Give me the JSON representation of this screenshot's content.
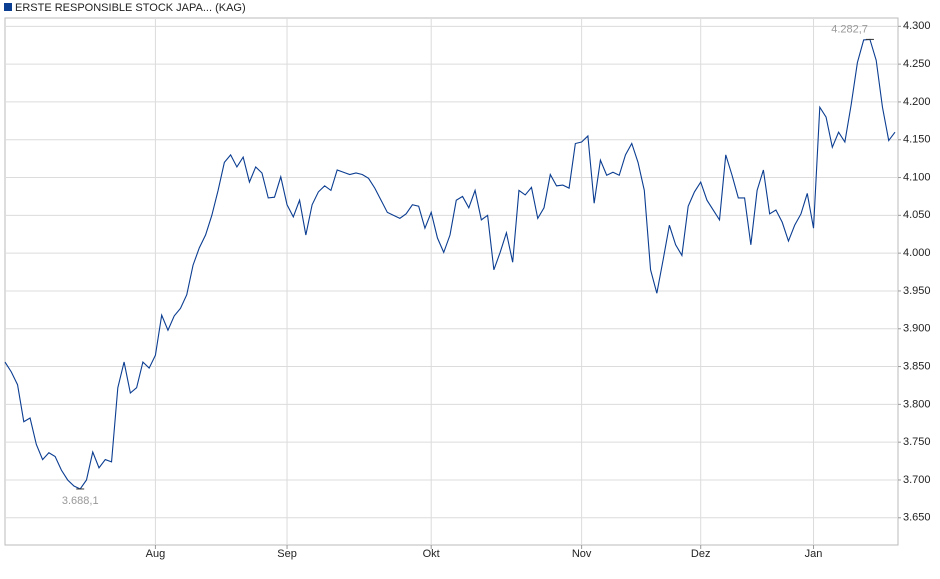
{
  "chart_data": {
    "type": "line",
    "categories": [
      null,
      null,
      null,
      null,
      null,
      null,
      null,
      null,
      null,
      null,
      null,
      null,
      null,
      null,
      null,
      null,
      null,
      null,
      null,
      null,
      null,
      null,
      null,
      null,
      "Aug",
      null,
      null,
      null,
      null,
      null,
      null,
      null,
      null,
      null,
      null,
      null,
      null,
      null,
      null,
      null,
      null,
      null,
      null,
      null,
      null,
      "Sep",
      null,
      null,
      null,
      null,
      null,
      null,
      null,
      null,
      null,
      null,
      null,
      null,
      null,
      null,
      null,
      null,
      null,
      null,
      null,
      null,
      null,
      null,
      "Okt",
      null,
      null,
      null,
      null,
      null,
      null,
      null,
      null,
      null,
      null,
      null,
      null,
      null,
      null,
      null,
      null,
      null,
      null,
      null,
      null,
      null,
      null,
      null,
      "Nov",
      null,
      null,
      null,
      null,
      null,
      null,
      null,
      null,
      null,
      null,
      null,
      null,
      null,
      null,
      null,
      null,
      null,
      null,
      "Dez",
      null,
      null,
      null,
      null,
      null,
      null,
      null,
      null,
      null,
      null,
      null,
      null,
      null,
      null,
      null,
      null,
      null,
      "Jan",
      null,
      null,
      null,
      null,
      null,
      null,
      null,
      null,
      null,
      null,
      null,
      null,
      null
    ],
    "series": [
      {
        "name": "ERSTE RESPONSIBLE STOCK JAPA... (KAG)",
        "color": "#0b3d91",
        "values": [
          3856,
          3843,
          3826,
          3777,
          3782,
          3747,
          3727,
          3736,
          3731,
          3713,
          3700,
          3692,
          3688.1,
          3700,
          3737,
          3716,
          3727,
          3724,
          3822,
          3856,
          3815,
          3822,
          3856,
          3848,
          3865,
          3918,
          3898,
          3917,
          3927,
          3945,
          3984,
          4007,
          4024,
          4050,
          4083,
          4120,
          4130,
          4114,
          4127,
          4094,
          4114,
          4106,
          4073,
          4074,
          4101,
          4064,
          4048,
          4070,
          4024,
          4064,
          4081,
          4089,
          4083,
          4110,
          4107,
          4104,
          4106,
          4104,
          4099,
          4086,
          4070,
          4054,
          4050,
          4046,
          4052,
          4064,
          4062,
          4033,
          4054,
          4020,
          4001,
          4024,
          4070,
          4075,
          4060,
          4083,
          4044,
          4050,
          3978,
          4001,
          4027,
          3988,
          4083,
          4077,
          4087,
          4046,
          4060,
          4104,
          4089,
          4090,
          4086,
          4145,
          4147,
          4155,
          4066,
          4123,
          4103,
          4107,
          4103,
          4130,
          4145,
          4120,
          4083,
          3978,
          3947,
          3991,
          4037,
          4011,
          3997,
          4062,
          4081,
          4094,
          4070,
          4057,
          4044,
          4130,
          4103,
          4073,
          4073,
          4011,
          4083,
          4110,
          4052,
          4057,
          4041,
          4016,
          4037,
          4052,
          4079,
          4033,
          4193,
          4180,
          4140,
          4160,
          4147,
          4196,
          4252,
          4282,
          4282.7,
          4255,
          4193,
          4149,
          4160
        ],
        "value_labels": [
          null,
          null,
          null,
          null,
          null,
          null,
          null,
          null,
          null,
          null,
          null,
          null,
          "3.688,1",
          null,
          null,
          null,
          null,
          null,
          null,
          null,
          null,
          null,
          null,
          null,
          null,
          null,
          null,
          null,
          null,
          null,
          null,
          null,
          null,
          null,
          null,
          null,
          null,
          null,
          null,
          null,
          null,
          null,
          null,
          null,
          null,
          null,
          null,
          null,
          null,
          null,
          null,
          null,
          null,
          null,
          null,
          null,
          null,
          null,
          null,
          null,
          null,
          null,
          null,
          null,
          null,
          null,
          null,
          null,
          null,
          null,
          null,
          null,
          null,
          null,
          null,
          null,
          null,
          null,
          null,
          null,
          null,
          null,
          null,
          null,
          null,
          null,
          null,
          null,
          null,
          null,
          null,
          null,
          null,
          null,
          null,
          null,
          null,
          null,
          null,
          null,
          null,
          null,
          null,
          null,
          null,
          null,
          null,
          null,
          null,
          null,
          null,
          null,
          null,
          null,
          null,
          null,
          null,
          null,
          null,
          null,
          null,
          null,
          null,
          null,
          null,
          null,
          null,
          null,
          null,
          null,
          null,
          null,
          null,
          null,
          null,
          null,
          null,
          null,
          "4.282,7",
          null,
          null,
          null,
          null
        ]
      }
    ],
    "ylim": [
      3614,
      4311
    ],
    "yticks": [
      {
        "value": 3650,
        "label": "3.650"
      },
      {
        "value": 3700,
        "label": "3.700"
      },
      {
        "value": 3750,
        "label": "3.750"
      },
      {
        "value": 3800,
        "label": "3.800"
      },
      {
        "value": 3850,
        "label": "3.850"
      },
      {
        "value": 3900,
        "label": "3.900"
      },
      {
        "value": 3950,
        "label": "3.950"
      },
      {
        "value": 4000,
        "label": "4.000"
      },
      {
        "value": 4050,
        "label": "4.050"
      },
      {
        "value": 4100,
        "label": "4.100"
      },
      {
        "value": 4150,
        "label": "4.150"
      },
      {
        "value": 4200,
        "label": "4.200"
      },
      {
        "value": 4250,
        "label": "4.250"
      },
      {
        "value": 4300,
        "label": "4.300"
      }
    ],
    "grid": true
  }
}
